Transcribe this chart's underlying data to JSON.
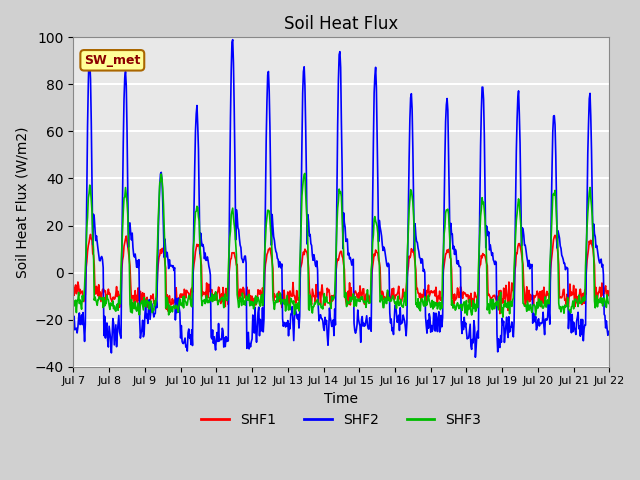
{
  "title": "Soil Heat Flux",
  "xlabel": "Time",
  "ylabel": "Soil Heat Flux (W/m2)",
  "ylim": [
    -40,
    100
  ],
  "yticks": [
    -40,
    -20,
    0,
    20,
    40,
    60,
    80,
    100
  ],
  "xlim_days": [
    7,
    22
  ],
  "xtick_days": [
    7,
    8,
    9,
    10,
    11,
    12,
    13,
    14,
    15,
    16,
    17,
    18,
    19,
    20,
    21,
    22
  ],
  "xtick_labels": [
    "Jul 7",
    "Jul 8",
    "Jul 9",
    "Jul 10",
    "Jul 11",
    "Jul 12",
    "Jul 13",
    "Jul 14",
    "Jul 15",
    "Jul 16",
    "Jul 17",
    "Jul 18",
    "Jul 19",
    "Jul 20",
    "Jul 21",
    "Jul 22"
  ],
  "colors": {
    "SHF1": "#ff0000",
    "SHF2": "#0000ff",
    "SHF3": "#00bb00"
  },
  "legend_label": "SW_met",
  "legend_bg": "#ffff99",
  "legend_border": "#aa6600",
  "background_color": "#e8e8e8",
  "plot_bg": "#e8e8e8",
  "grid_color": "#ffffff",
  "linewidth": 1.2
}
